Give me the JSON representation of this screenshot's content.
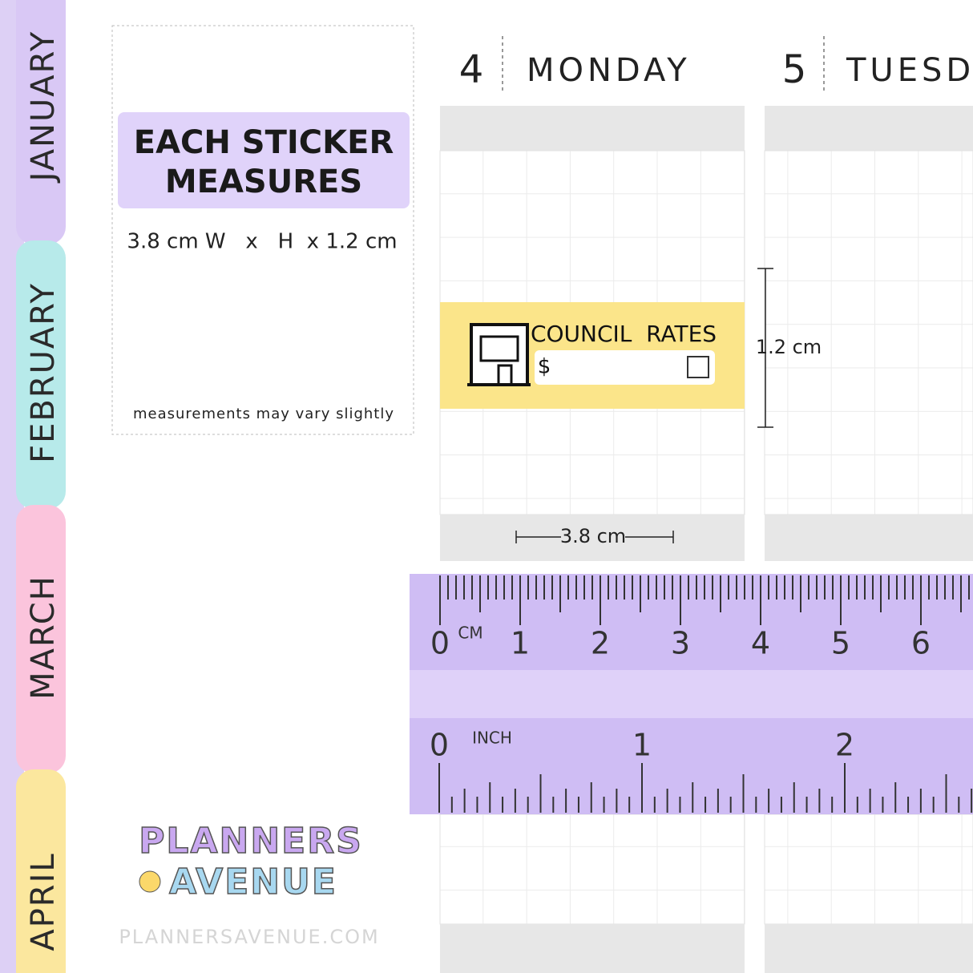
{
  "tabs": [
    "JANUARY",
    "FEBRUARY",
    "MARCH",
    "APRIL"
  ],
  "info": {
    "title_line1": "EACH STICKER",
    "title_line2": "MEASURES",
    "size": "3.8 cm W   x   H  x 1.2 cm",
    "note": "measurements may vary slightly"
  },
  "days": [
    {
      "number": "4",
      "name": "MONDAY"
    },
    {
      "number": "5",
      "name": "TUESD"
    }
  ],
  "sticker": {
    "label": "COUNCIL  RATES",
    "currency": "$"
  },
  "dimensions": {
    "height": "1.2 cm",
    "width": "3.8 cm"
  },
  "ruler": {
    "cm_unit": "CM",
    "cm_labels": [
      0,
      1,
      2,
      3,
      4,
      5,
      6
    ],
    "inch_unit": "INCH",
    "inch_labels": [
      0,
      1,
      2
    ]
  },
  "logo": {
    "line1": "PLANNERS",
    "line2": "AVENUE"
  },
  "website": "PLANNERSAVENUE.COM"
}
